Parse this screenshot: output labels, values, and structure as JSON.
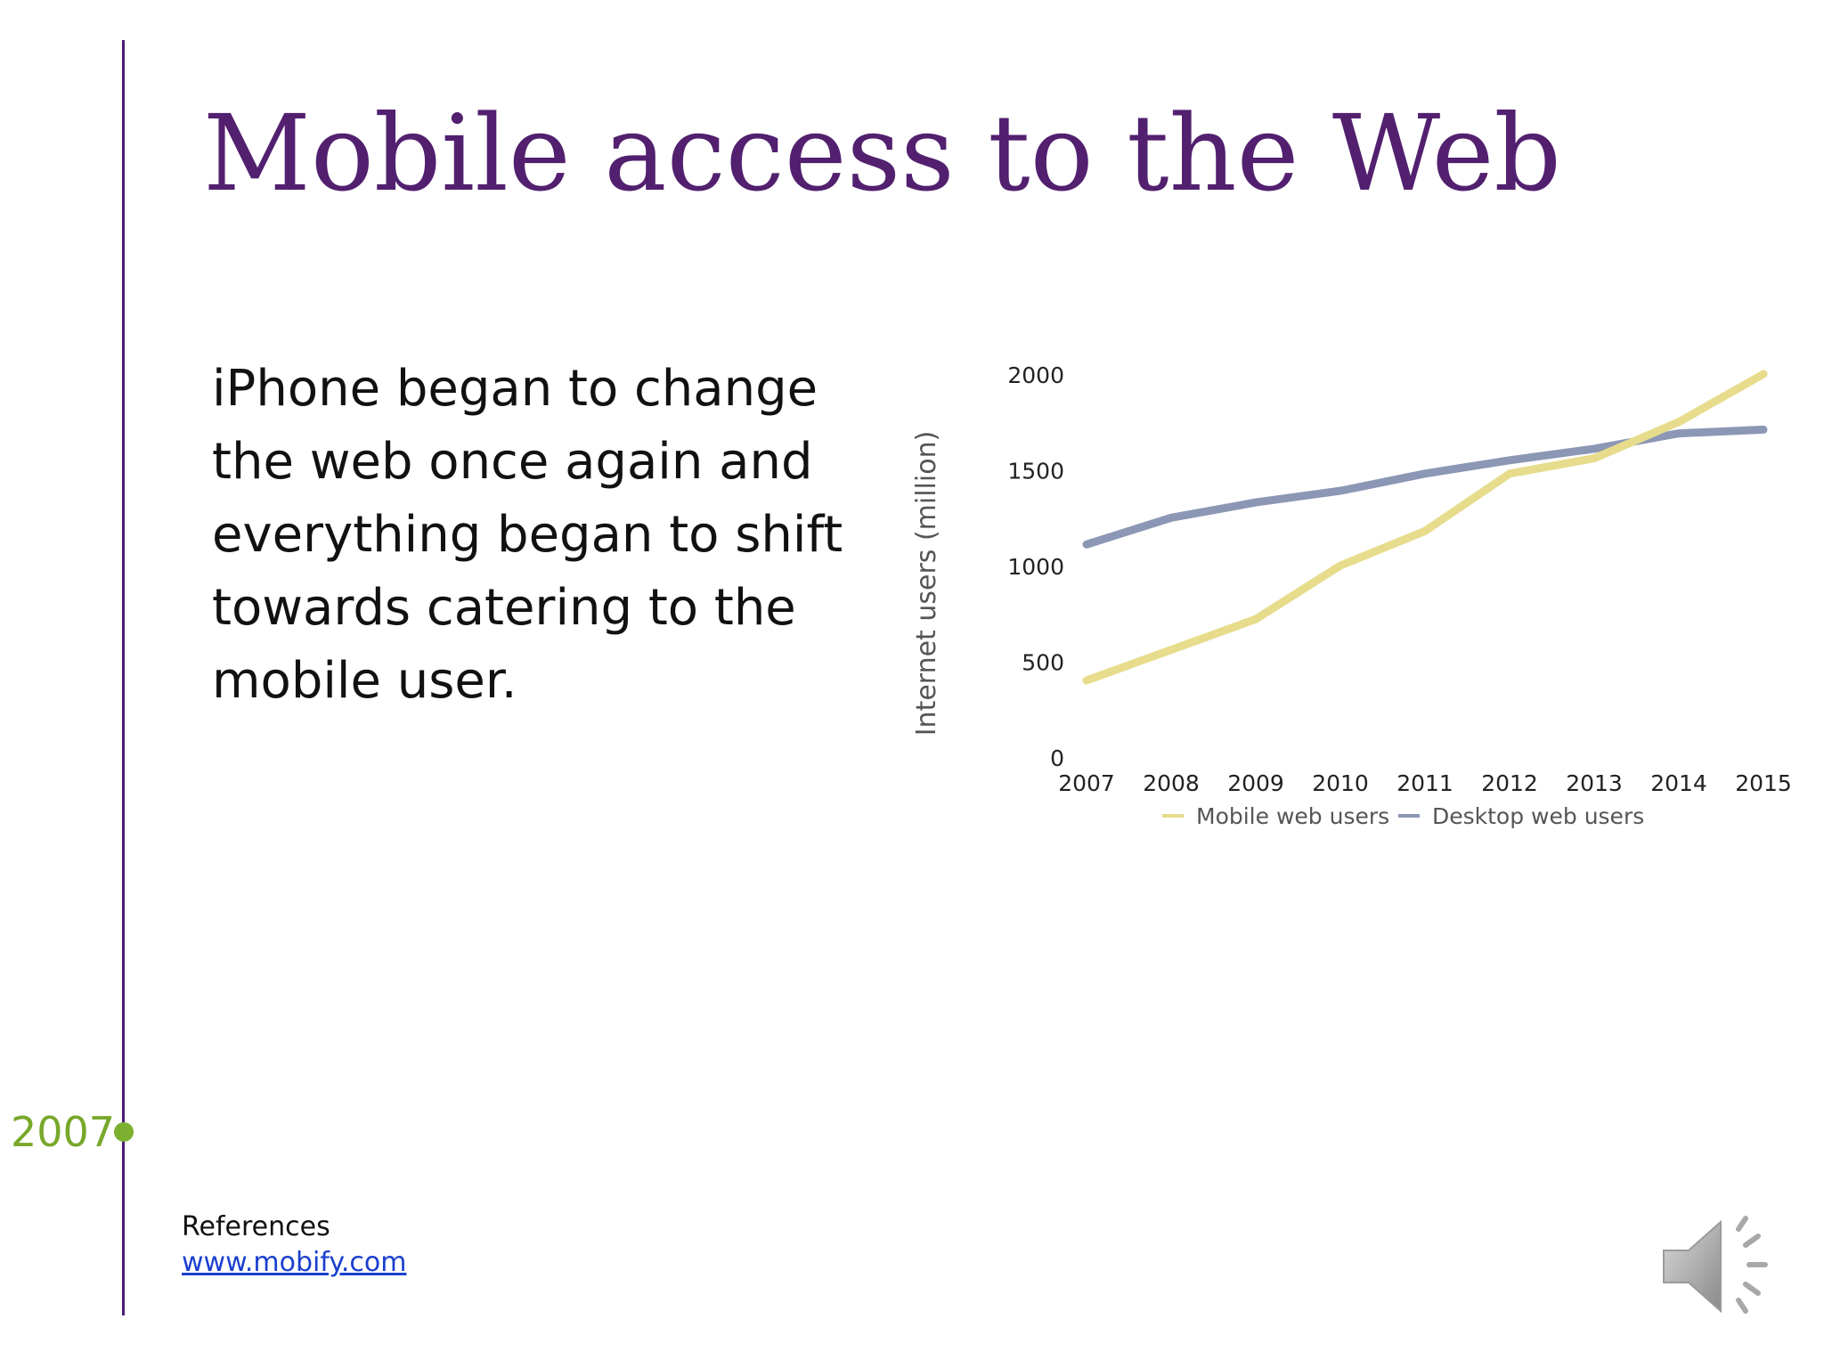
{
  "slide": {
    "title": "Mobile access to the Web",
    "body": "iPhone began to change the web once again and everything began to shift towards catering to the mobile user.",
    "timeline_year": "2007",
    "references_label": "References",
    "references_link": "www.mobify.com"
  },
  "colors": {
    "title": "#52206f",
    "timeline": "#4b1a7a",
    "timeline_dot": "#7db030",
    "mobile_series": "#e6dc8c",
    "desktop_series": "#8c97b5"
  },
  "icons": [
    "speaker-icon"
  ],
  "chart_data": {
    "type": "line",
    "title": "",
    "xlabel": "",
    "ylabel": "Internet users (million)",
    "x": [
      "2007",
      "2008",
      "2009",
      "2010",
      "2011",
      "2012",
      "2013",
      "2014",
      "2015"
    ],
    "ylim": [
      0,
      2000
    ],
    "yticks": [
      0,
      500,
      1000,
      1500,
      2000
    ],
    "grid": false,
    "legend_position": "bottom",
    "series": [
      {
        "name": "Mobile web users",
        "color": "#e6dc8c",
        "values": [
          400,
          560,
          720,
          1000,
          1180,
          1480,
          1560,
          1750,
          2000
        ]
      },
      {
        "name": "Desktop web users",
        "color": "#8c97b5",
        "values": [
          1110,
          1250,
          1330,
          1390,
          1480,
          1550,
          1610,
          1690,
          1710
        ]
      }
    ]
  }
}
